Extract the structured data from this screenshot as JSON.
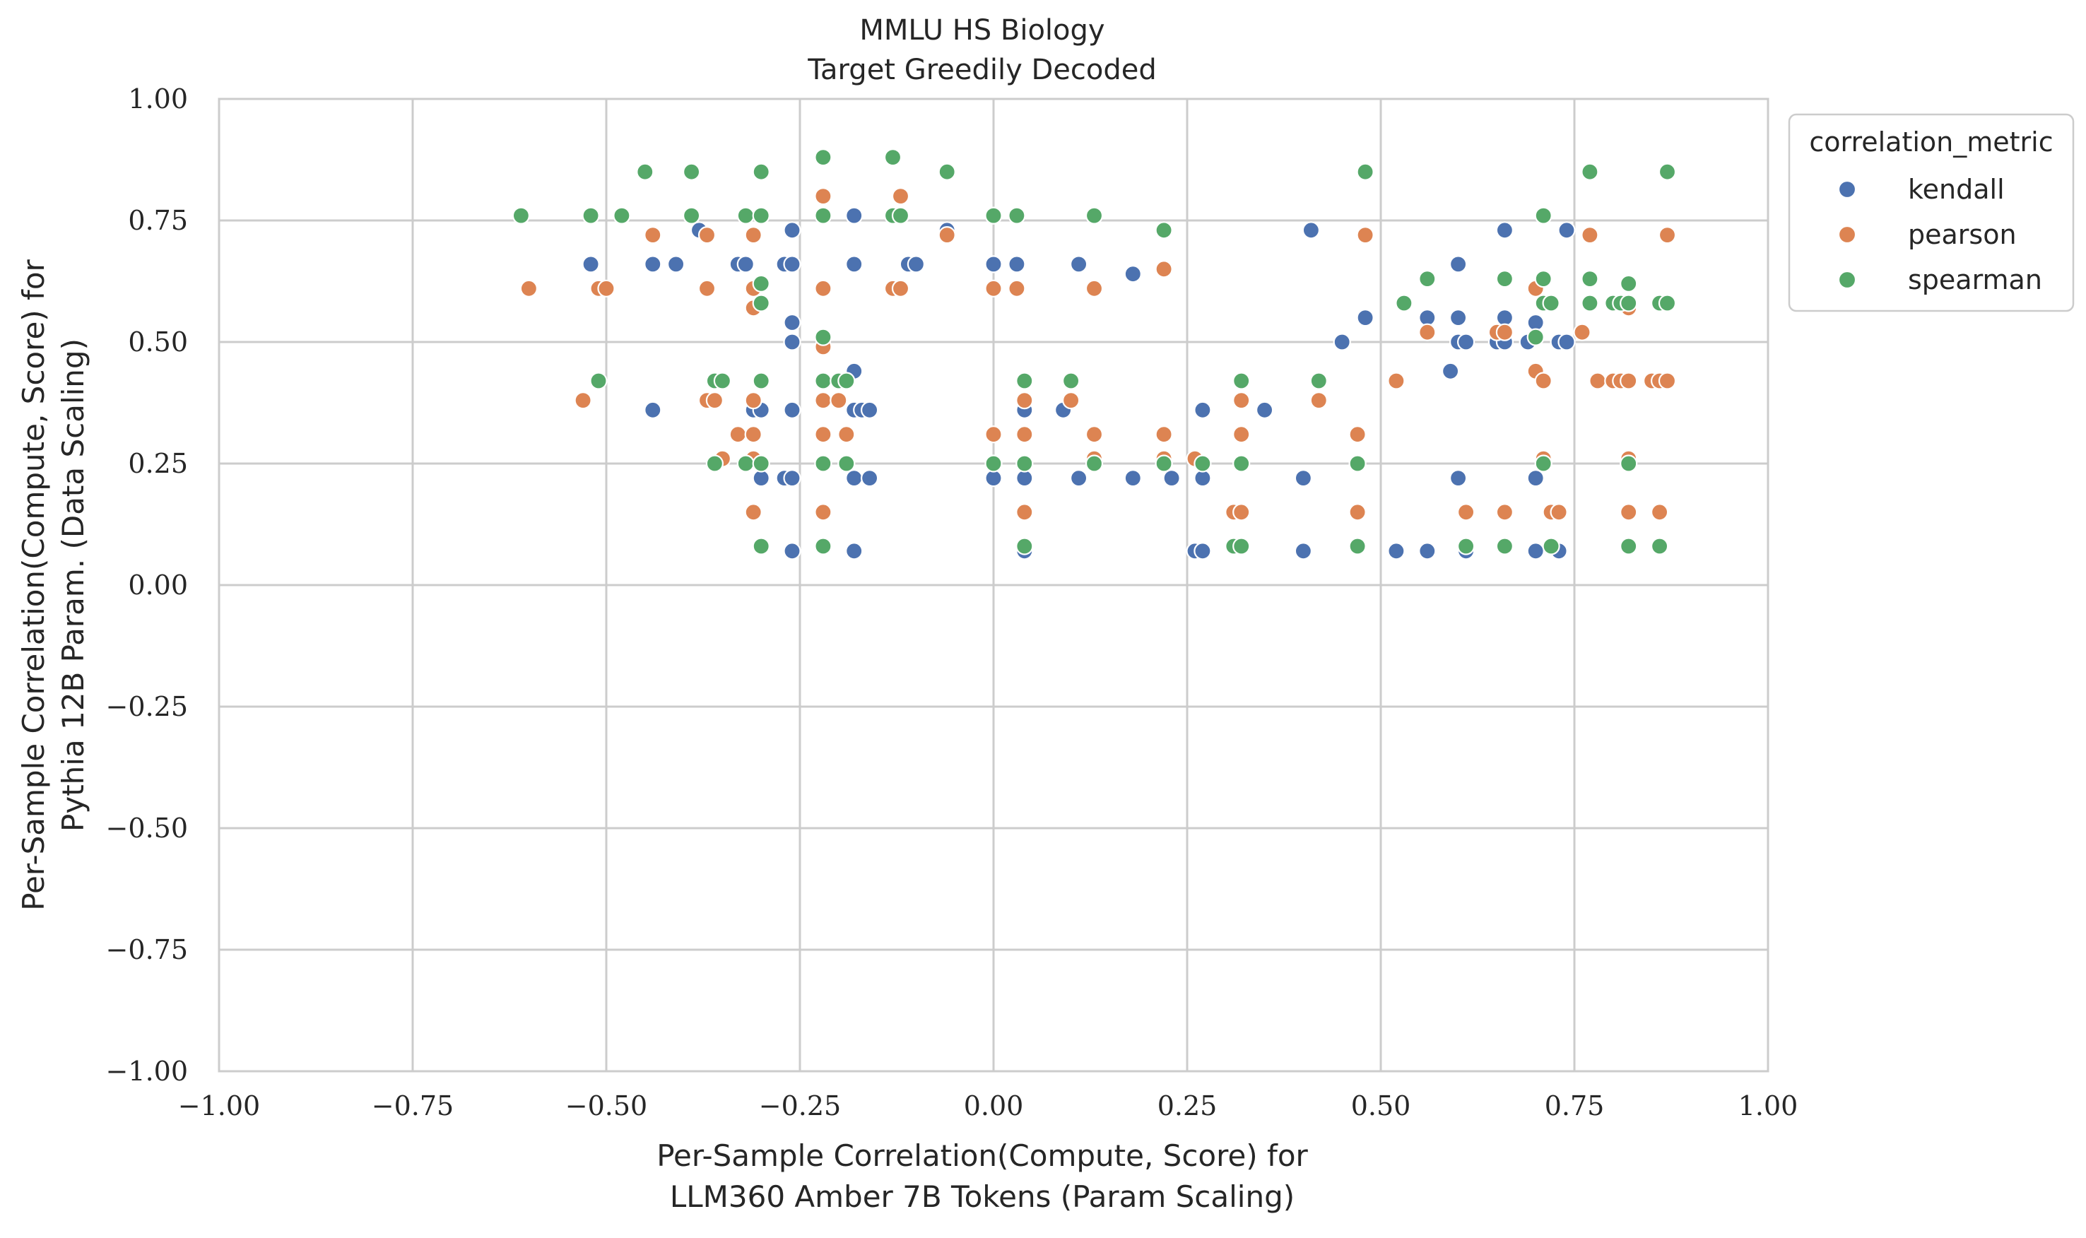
{
  "chart_data": {
    "type": "scatter",
    "title": "MMLU HS Biology",
    "subtitle": "Target Greedily Decoded",
    "xlabel": [
      "Per-Sample Correlation(Compute, Score) for",
      "LLM360 Amber 7B Tokens (Param Scaling)"
    ],
    "ylabel": [
      "Per-Sample Correlation(Compute, Score) for",
      "Pythia 12B Param. (Data Scaling)"
    ],
    "xlim": [
      -1.0,
      1.0
    ],
    "ylim": [
      -1.0,
      1.0
    ],
    "xticks": [
      -1.0,
      -0.75,
      -0.5,
      -0.25,
      0.0,
      0.25,
      0.5,
      0.75,
      1.0
    ],
    "yticks": [
      -1.0,
      -0.75,
      -0.5,
      -0.25,
      0.0,
      0.25,
      0.5,
      0.75,
      1.0
    ],
    "xtick_labels": [
      "−1.00",
      "−0.75",
      "−0.50",
      "−0.25",
      "0.00",
      "0.25",
      "0.50",
      "0.75",
      "1.00"
    ],
    "ytick_labels": [
      "−1.00",
      "−0.75",
      "−0.50",
      "−0.25",
      "0.00",
      "0.25",
      "0.50",
      "0.75",
      "1.00"
    ],
    "grid": true,
    "legend": {
      "title": "correlation_metric",
      "placement": "outside-upper-right"
    },
    "series": [
      {
        "name": "kendall",
        "color": "#4c72b0",
        "points": [
          [
            -0.52,
            0.66
          ],
          [
            -0.44,
            0.36
          ],
          [
            -0.44,
            0.66
          ],
          [
            -0.41,
            0.66
          ],
          [
            -0.38,
            0.73
          ],
          [
            -0.33,
            0.66
          ],
          [
            -0.32,
            0.66
          ],
          [
            -0.31,
            0.36
          ],
          [
            -0.3,
            0.36
          ],
          [
            -0.3,
            0.22
          ],
          [
            -0.27,
            0.22
          ],
          [
            -0.27,
            0.66
          ],
          [
            -0.26,
            0.73
          ],
          [
            -0.26,
            0.66
          ],
          [
            -0.26,
            0.54
          ],
          [
            -0.26,
            0.5
          ],
          [
            -0.26,
            0.36
          ],
          [
            -0.26,
            0.22
          ],
          [
            -0.26,
            0.07
          ],
          [
            -0.18,
            0.76
          ],
          [
            -0.18,
            0.66
          ],
          [
            -0.18,
            0.44
          ],
          [
            -0.18,
            0.36
          ],
          [
            -0.18,
            0.22
          ],
          [
            -0.18,
            0.07
          ],
          [
            -0.17,
            0.36
          ],
          [
            -0.16,
            0.36
          ],
          [
            -0.16,
            0.22
          ],
          [
            -0.13,
            0.76
          ],
          [
            -0.12,
            0.76
          ],
          [
            -0.11,
            0.66
          ],
          [
            -0.1,
            0.66
          ],
          [
            -0.06,
            0.73
          ],
          [
            0.0,
            0.66
          ],
          [
            0.0,
            0.22
          ],
          [
            0.03,
            0.66
          ],
          [
            0.04,
            0.36
          ],
          [
            0.04,
            0.22
          ],
          [
            0.04,
            0.07
          ],
          [
            0.09,
            0.36
          ],
          [
            0.11,
            0.66
          ],
          [
            0.11,
            0.22
          ],
          [
            0.18,
            0.64
          ],
          [
            0.18,
            0.22
          ],
          [
            0.23,
            0.22
          ],
          [
            0.26,
            0.07
          ],
          [
            0.27,
            0.36
          ],
          [
            0.27,
            0.22
          ],
          [
            0.27,
            0.07
          ],
          [
            0.35,
            0.36
          ],
          [
            0.4,
            0.22
          ],
          [
            0.4,
            0.07
          ],
          [
            0.41,
            0.73
          ],
          [
            0.45,
            0.5
          ],
          [
            0.48,
            0.55
          ],
          [
            0.52,
            0.07
          ],
          [
            0.56,
            0.55
          ],
          [
            0.56,
            0.07
          ],
          [
            0.59,
            0.44
          ],
          [
            0.6,
            0.66
          ],
          [
            0.6,
            0.55
          ],
          [
            0.6,
            0.5
          ],
          [
            0.6,
            0.22
          ],
          [
            0.61,
            0.5
          ],
          [
            0.61,
            0.07
          ],
          [
            0.65,
            0.5
          ],
          [
            0.66,
            0.73
          ],
          [
            0.66,
            0.55
          ],
          [
            0.66,
            0.5
          ],
          [
            0.69,
            0.5
          ],
          [
            0.7,
            0.54
          ],
          [
            0.7,
            0.22
          ],
          [
            0.7,
            0.07
          ],
          [
            0.73,
            0.5
          ],
          [
            0.73,
            0.07
          ],
          [
            0.74,
            0.73
          ],
          [
            0.74,
            0.5
          ]
        ]
      },
      {
        "name": "pearson",
        "color": "#dd8452",
        "points": [
          [
            -0.6,
            0.61
          ],
          [
            -0.53,
            0.38
          ],
          [
            -0.51,
            0.61
          ],
          [
            -0.5,
            0.61
          ],
          [
            -0.44,
            0.72
          ],
          [
            -0.37,
            0.72
          ],
          [
            -0.37,
            0.61
          ],
          [
            -0.37,
            0.38
          ],
          [
            -0.36,
            0.38
          ],
          [
            -0.35,
            0.26
          ],
          [
            -0.33,
            0.31
          ],
          [
            -0.31,
            0.72
          ],
          [
            -0.31,
            0.61
          ],
          [
            -0.31,
            0.57
          ],
          [
            -0.31,
            0.38
          ],
          [
            -0.31,
            0.31
          ],
          [
            -0.31,
            0.26
          ],
          [
            -0.31,
            0.15
          ],
          [
            -0.22,
            0.8
          ],
          [
            -0.22,
            0.61
          ],
          [
            -0.22,
            0.49
          ],
          [
            -0.22,
            0.38
          ],
          [
            -0.22,
            0.31
          ],
          [
            -0.22,
            0.15
          ],
          [
            -0.2,
            0.38
          ],
          [
            -0.19,
            0.31
          ],
          [
            -0.13,
            0.61
          ],
          [
            -0.12,
            0.61
          ],
          [
            -0.12,
            0.8
          ],
          [
            -0.06,
            0.72
          ],
          [
            0.0,
            0.61
          ],
          [
            0.0,
            0.31
          ],
          [
            0.03,
            0.61
          ],
          [
            0.04,
            0.38
          ],
          [
            0.04,
            0.31
          ],
          [
            0.04,
            0.15
          ],
          [
            0.1,
            0.38
          ],
          [
            0.13,
            0.61
          ],
          [
            0.13,
            0.31
          ],
          [
            0.13,
            0.26
          ],
          [
            0.22,
            0.65
          ],
          [
            0.22,
            0.31
          ],
          [
            0.22,
            0.26
          ],
          [
            0.26,
            0.26
          ],
          [
            0.31,
            0.15
          ],
          [
            0.32,
            0.38
          ],
          [
            0.32,
            0.31
          ],
          [
            0.32,
            0.15
          ],
          [
            0.42,
            0.38
          ],
          [
            0.47,
            0.31
          ],
          [
            0.47,
            0.15
          ],
          [
            0.48,
            0.72
          ],
          [
            0.52,
            0.42
          ],
          [
            0.56,
            0.52
          ],
          [
            0.61,
            0.15
          ],
          [
            0.65,
            0.52
          ],
          [
            0.66,
            0.52
          ],
          [
            0.66,
            0.15
          ],
          [
            0.7,
            0.61
          ],
          [
            0.7,
            0.44
          ],
          [
            0.71,
            0.42
          ],
          [
            0.71,
            0.26
          ],
          [
            0.72,
            0.15
          ],
          [
            0.73,
            0.15
          ],
          [
            0.76,
            0.52
          ],
          [
            0.77,
            0.72
          ],
          [
            0.78,
            0.42
          ],
          [
            0.8,
            0.42
          ],
          [
            0.81,
            0.42
          ],
          [
            0.82,
            0.57
          ],
          [
            0.82,
            0.42
          ],
          [
            0.82,
            0.26
          ],
          [
            0.82,
            0.15
          ],
          [
            0.85,
            0.42
          ],
          [
            0.86,
            0.42
          ],
          [
            0.86,
            0.15
          ],
          [
            0.87,
            0.72
          ],
          [
            0.87,
            0.42
          ]
        ]
      },
      {
        "name": "spearman",
        "color": "#55a868",
        "points": [
          [
            -0.61,
            0.76
          ],
          [
            -0.52,
            0.76
          ],
          [
            -0.51,
            0.42
          ],
          [
            -0.48,
            0.76
          ],
          [
            -0.45,
            0.85
          ],
          [
            -0.39,
            0.85
          ],
          [
            -0.39,
            0.76
          ],
          [
            -0.36,
            0.42
          ],
          [
            -0.36,
            0.25
          ],
          [
            -0.35,
            0.42
          ],
          [
            -0.32,
            0.76
          ],
          [
            -0.32,
            0.25
          ],
          [
            -0.3,
            0.85
          ],
          [
            -0.3,
            0.76
          ],
          [
            -0.3,
            0.62
          ],
          [
            -0.3,
            0.58
          ],
          [
            -0.3,
            0.42
          ],
          [
            -0.3,
            0.25
          ],
          [
            -0.3,
            0.08
          ],
          [
            -0.22,
            0.88
          ],
          [
            -0.22,
            0.76
          ],
          [
            -0.22,
            0.51
          ],
          [
            -0.22,
            0.42
          ],
          [
            -0.22,
            0.25
          ],
          [
            -0.22,
            0.08
          ],
          [
            -0.2,
            0.42
          ],
          [
            -0.19,
            0.42
          ],
          [
            -0.19,
            0.25
          ],
          [
            -0.13,
            0.88
          ],
          [
            -0.13,
            0.76
          ],
          [
            -0.12,
            0.76
          ],
          [
            -0.06,
            0.85
          ],
          [
            0.0,
            0.76
          ],
          [
            0.0,
            0.25
          ],
          [
            0.03,
            0.76
          ],
          [
            0.04,
            0.42
          ],
          [
            0.04,
            0.25
          ],
          [
            0.04,
            0.08
          ],
          [
            0.1,
            0.42
          ],
          [
            0.13,
            0.76
          ],
          [
            0.13,
            0.25
          ],
          [
            0.22,
            0.73
          ],
          [
            0.22,
            0.25
          ],
          [
            0.27,
            0.25
          ],
          [
            0.31,
            0.08
          ],
          [
            0.32,
            0.42
          ],
          [
            0.32,
            0.25
          ],
          [
            0.32,
            0.08
          ],
          [
            0.42,
            0.42
          ],
          [
            0.47,
            0.25
          ],
          [
            0.47,
            0.08
          ],
          [
            0.48,
            0.85
          ],
          [
            0.53,
            0.58
          ],
          [
            0.56,
            0.63
          ],
          [
            0.61,
            0.08
          ],
          [
            0.66,
            0.63
          ],
          [
            0.66,
            0.08
          ],
          [
            0.7,
            0.51
          ],
          [
            0.71,
            0.76
          ],
          [
            0.71,
            0.63
          ],
          [
            0.71,
            0.58
          ],
          [
            0.71,
            0.25
          ],
          [
            0.72,
            0.58
          ],
          [
            0.72,
            0.08
          ],
          [
            0.77,
            0.85
          ],
          [
            0.77,
            0.63
          ],
          [
            0.77,
            0.58
          ],
          [
            0.8,
            0.58
          ],
          [
            0.81,
            0.58
          ],
          [
            0.82,
            0.62
          ],
          [
            0.82,
            0.58
          ],
          [
            0.82,
            0.25
          ],
          [
            0.82,
            0.08
          ],
          [
            0.86,
            0.58
          ],
          [
            0.86,
            0.08
          ],
          [
            0.87,
            0.85
          ],
          [
            0.87,
            0.58
          ]
        ]
      }
    ]
  }
}
